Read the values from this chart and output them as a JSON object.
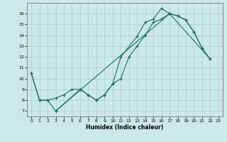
{
  "xlabel": "Humidex (Indice chaleur)",
  "xlim": [
    -0.5,
    23.5
  ],
  "ylim": [
    6.5,
    17
  ],
  "yticks": [
    7,
    8,
    9,
    10,
    11,
    12,
    13,
    14,
    15,
    16
  ],
  "xticks": [
    0,
    1,
    2,
    3,
    4,
    5,
    6,
    7,
    8,
    9,
    10,
    11,
    12,
    13,
    14,
    15,
    16,
    17,
    18,
    19,
    20,
    21,
    22,
    23
  ],
  "background_color": "#cce8e8",
  "grid_color": "#aacece",
  "line_color": "#1a7060",
  "line1": {
    "x": [
      0,
      1,
      2,
      3,
      6,
      7,
      8,
      9,
      10,
      11,
      13,
      14,
      15,
      16,
      17,
      18,
      19,
      20,
      21
    ],
    "y": [
      10.5,
      8.0,
      8.0,
      7.0,
      9.0,
      8.5,
      8.0,
      8.5,
      9.5,
      12.0,
      13.9,
      15.2,
      15.5,
      16.5,
      16.0,
      15.8,
      15.4,
      14.3,
      12.8
    ]
  },
  "line2": {
    "x": [
      0,
      1,
      2,
      3,
      4,
      5,
      6,
      7,
      8,
      9,
      10,
      11,
      12,
      13,
      14,
      15,
      16,
      17,
      18,
      19,
      20,
      21,
      22
    ],
    "y": [
      10.5,
      8.0,
      8.0,
      8.2,
      8.5,
      9.0,
      9.0,
      8.5,
      8.0,
      8.5,
      9.5,
      10.0,
      12.0,
      13.0,
      14.0,
      15.2,
      15.5,
      16.0,
      15.8,
      15.4,
      14.3,
      12.8,
      11.8
    ]
  },
  "line3": {
    "x": [
      3,
      17,
      22
    ],
    "y": [
      7.0,
      16.0,
      11.8
    ]
  }
}
